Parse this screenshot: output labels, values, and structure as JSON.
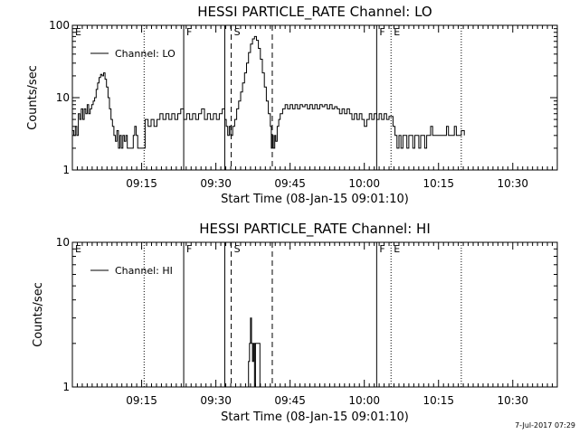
{
  "chart_data": [
    {
      "type": "line",
      "title": "HESSI PARTICLE_RATE Channel: LO",
      "xlabel": "Start Time (08-Jan-15 09:01:10)",
      "ylabel": "Counts/sec",
      "yscale": "log",
      "ylim": [
        1,
        100
      ],
      "y_ticks": [
        1,
        10,
        100
      ],
      "y_tick_labels": [
        "1",
        "10",
        "100"
      ],
      "x_range_minutes": [
        0,
        98
      ],
      "x_tick_labels": [
        "09:15",
        "09:30",
        "09:45",
        "10:00",
        "10:15",
        "10:30"
      ],
      "x_tick_minutes": [
        14,
        29,
        44,
        59,
        74,
        89
      ],
      "legend": {
        "label": "Channel: LO",
        "placement": "top-left"
      },
      "markers": [
        {
          "label": "E",
          "t": 0,
          "style": "dotted"
        },
        {
          "label": "",
          "t": 14.5,
          "style": "dotted"
        },
        {
          "label": "F",
          "t": 22.5,
          "style": "solid"
        },
        {
          "label": "",
          "t": 30.8,
          "style": "solid"
        },
        {
          "label": "S",
          "t": 32.1,
          "style": "dashed"
        },
        {
          "label": "",
          "t": 40.4,
          "style": "dashed"
        },
        {
          "label": "F",
          "t": 61.5,
          "style": "solid"
        },
        {
          "label": "E",
          "t": 64.4,
          "style": "dotted"
        },
        {
          "label": "",
          "t": 78.6,
          "style": "dotted"
        }
      ],
      "series": [
        {
          "name": "Channel: LO",
          "points": [
            [
              0,
              3.5
            ],
            [
              0.3,
              3
            ],
            [
              0.6,
              4
            ],
            [
              0.9,
              3
            ],
            [
              1.2,
              6
            ],
            [
              1.5,
              5
            ],
            [
              1.8,
              7
            ],
            [
              2.1,
              5
            ],
            [
              2.4,
              7
            ],
            [
              2.7,
              6
            ],
            [
              3,
              8
            ],
            [
              3.3,
              6
            ],
            [
              3.6,
              7
            ],
            [
              3.9,
              8
            ],
            [
              4.2,
              9
            ],
            [
              4.5,
              10
            ],
            [
              4.8,
              13
            ],
            [
              5.1,
              16
            ],
            [
              5.4,
              19
            ],
            [
              5.7,
              21
            ],
            [
              6,
              20
            ],
            [
              6.3,
              22
            ],
            [
              6.6,
              18
            ],
            [
              6.9,
              14
            ],
            [
              7.2,
              10
            ],
            [
              7.5,
              7
            ],
            [
              7.8,
              5
            ],
            [
              8.1,
              4
            ],
            [
              8.4,
              3
            ],
            [
              8.7,
              2.5
            ],
            [
              9,
              3.5
            ],
            [
              9.3,
              2
            ],
            [
              9.6,
              3
            ],
            [
              9.9,
              2
            ],
            [
              10.2,
              3
            ],
            [
              10.5,
              2.5
            ],
            [
              10.8,
              3
            ],
            [
              11.1,
              2
            ],
            [
              11.4,
              2
            ],
            [
              11.7,
              2
            ],
            [
              12,
              2
            ],
            [
              12.3,
              3
            ],
            [
              12.6,
              4
            ],
            [
              12.9,
              3
            ],
            [
              13.2,
              2
            ],
            [
              13.5,
              2
            ],
            [
              13.8,
              2
            ],
            [
              14.1,
              2
            ],
            [
              14.4,
              2
            ],
            [
              14.7,
              5
            ],
            [
              15.3,
              4
            ],
            [
              15.9,
              5
            ],
            [
              16.5,
              4
            ],
            [
              17.1,
              5
            ],
            [
              17.7,
              6
            ],
            [
              18.3,
              5
            ],
            [
              18.9,
              6
            ],
            [
              19.5,
              5
            ],
            [
              20.1,
              6
            ],
            [
              20.7,
              5
            ],
            [
              21.3,
              6
            ],
            [
              21.9,
              7
            ],
            [
              22.5,
              5
            ],
            [
              23.1,
              6
            ],
            [
              23.7,
              5
            ],
            [
              24.3,
              6
            ],
            [
              24.9,
              5
            ],
            [
              25.5,
              6
            ],
            [
              26.1,
              7
            ],
            [
              26.7,
              5
            ],
            [
              27.3,
              6
            ],
            [
              27.9,
              5
            ],
            [
              28.5,
              6
            ],
            [
              29.1,
              5
            ],
            [
              29.7,
              6
            ],
            [
              30.3,
              7
            ],
            [
              30.8,
              5
            ],
            [
              31.1,
              4
            ],
            [
              31.4,
              3
            ],
            [
              31.7,
              4
            ],
            [
              32,
              3
            ],
            [
              32.4,
              4
            ],
            [
              32.8,
              5
            ],
            [
              33.2,
              7
            ],
            [
              33.6,
              9
            ],
            [
              34,
              12
            ],
            [
              34.4,
              16
            ],
            [
              34.8,
              22
            ],
            [
              35.2,
              30
            ],
            [
              35.6,
              42
            ],
            [
              36,
              55
            ],
            [
              36.4,
              65
            ],
            [
              36.8,
              70
            ],
            [
              37.2,
              62
            ],
            [
              37.6,
              48
            ],
            [
              38,
              34
            ],
            [
              38.4,
              22
            ],
            [
              38.8,
              14
            ],
            [
              39.2,
              9
            ],
            [
              39.6,
              6
            ],
            [
              40,
              4
            ],
            [
              40.2,
              2
            ],
            [
              40.4,
              3
            ],
            [
              40.6,
              2
            ],
            [
              40.9,
              3
            ],
            [
              41.1,
              2.5
            ],
            [
              41.4,
              4
            ],
            [
              41.7,
              5
            ],
            [
              42,
              6
            ],
            [
              42.5,
              7
            ],
            [
              43,
              8
            ],
            [
              43.5,
              7
            ],
            [
              44,
              8
            ],
            [
              44.5,
              7
            ],
            [
              45,
              8
            ],
            [
              45.5,
              7
            ],
            [
              46,
              8
            ],
            [
              46.5,
              7.5
            ],
            [
              47,
              8
            ],
            [
              47.5,
              7
            ],
            [
              48,
              8
            ],
            [
              48.5,
              7
            ],
            [
              49,
              8
            ],
            [
              49.5,
              7
            ],
            [
              50,
              8
            ],
            [
              50.5,
              7.5
            ],
            [
              51,
              8
            ],
            [
              51.5,
              7
            ],
            [
              52,
              8
            ],
            [
              52.5,
              7
            ],
            [
              53,
              7.5
            ],
            [
              53.5,
              7
            ],
            [
              54,
              6
            ],
            [
              54.5,
              7
            ],
            [
              55,
              6
            ],
            [
              55.5,
              7
            ],
            [
              56,
              6
            ],
            [
              56.5,
              5
            ],
            [
              57,
              6
            ],
            [
              57.5,
              5
            ],
            [
              58,
              6
            ],
            [
              58.5,
              5
            ],
            [
              59,
              4
            ],
            [
              59.5,
              5
            ],
            [
              60,
              6
            ],
            [
              60.5,
              5
            ],
            [
              61,
              6
            ],
            [
              61.5,
              5
            ],
            [
              62,
              6
            ],
            [
              62.5,
              5
            ],
            [
              63,
              6
            ],
            [
              63.5,
              5
            ],
            [
              64,
              5.5
            ],
            [
              64.8,
              4
            ],
            [
              65.2,
              3
            ],
            [
              65.6,
              2
            ],
            [
              66,
              3
            ],
            [
              66.4,
              2
            ],
            [
              66.8,
              3
            ],
            [
              67.2,
              3
            ],
            [
              67.6,
              2
            ],
            [
              68,
              3
            ],
            [
              68.4,
              3
            ],
            [
              68.8,
              2
            ],
            [
              69.2,
              3
            ],
            [
              69.6,
              3
            ],
            [
              70,
              2
            ],
            [
              70.4,
              3
            ],
            [
              70.8,
              3
            ],
            [
              71.2,
              2
            ],
            [
              71.6,
              3
            ],
            [
              72,
              3
            ],
            [
              72.4,
              4
            ],
            [
              72.8,
              3
            ],
            [
              73.6,
              3
            ],
            [
              74.4,
              3
            ],
            [
              75.2,
              3
            ],
            [
              75.6,
              4
            ],
            [
              76,
              3
            ],
            [
              76.8,
              3
            ],
            [
              77.2,
              4
            ],
            [
              77.6,
              3
            ],
            [
              78.4,
              3
            ],
            [
              78.6,
              3.5
            ],
            [
              79.2,
              3
            ]
          ]
        }
      ]
    },
    {
      "type": "line",
      "title": "HESSI PARTICLE_RATE Channel: HI",
      "xlabel": "Start Time (08-Jan-15 09:01:10)",
      "ylabel": "Counts/sec",
      "yscale": "log",
      "ylim": [
        1,
        10
      ],
      "y_ticks": [
        1,
        10
      ],
      "y_tick_labels": [
        "1",
        "10"
      ],
      "x_range_minutes": [
        0,
        98
      ],
      "x_tick_labels": [
        "09:15",
        "09:30",
        "09:45",
        "10:00",
        "10:15",
        "10:30"
      ],
      "x_tick_minutes": [
        14,
        29,
        44,
        59,
        74,
        89
      ],
      "legend": {
        "label": "Channel: HI",
        "placement": "top-left"
      },
      "markers": [
        {
          "label": "E",
          "t": 0,
          "style": "dotted"
        },
        {
          "label": "",
          "t": 14.5,
          "style": "dotted"
        },
        {
          "label": "F",
          "t": 22.5,
          "style": "solid"
        },
        {
          "label": "",
          "t": 30.8,
          "style": "solid"
        },
        {
          "label": "S",
          "t": 32.1,
          "style": "dashed"
        },
        {
          "label": "",
          "t": 40.4,
          "style": "dashed"
        },
        {
          "label": "F",
          "t": 61.5,
          "style": "solid"
        },
        {
          "label": "E",
          "t": 64.4,
          "style": "dotted"
        },
        {
          "label": "",
          "t": 78.6,
          "style": "dotted"
        }
      ],
      "series": [
        {
          "name": "Channel: HI",
          "points": [
            [
              35.4,
              1
            ],
            [
              35.6,
              1.5
            ],
            [
              35.8,
              2
            ],
            [
              36,
              3
            ],
            [
              36.2,
              2
            ],
            [
              36.4,
              1.5
            ],
            [
              36.6,
              2
            ],
            [
              36.8,
              1
            ],
            [
              37,
              2
            ],
            [
              37.2,
              2
            ],
            [
              37.6,
              2
            ],
            [
              37.9,
              1
            ]
          ]
        }
      ]
    }
  ],
  "footer": {
    "date_stamp": "7-Jul-2017 07:29"
  }
}
